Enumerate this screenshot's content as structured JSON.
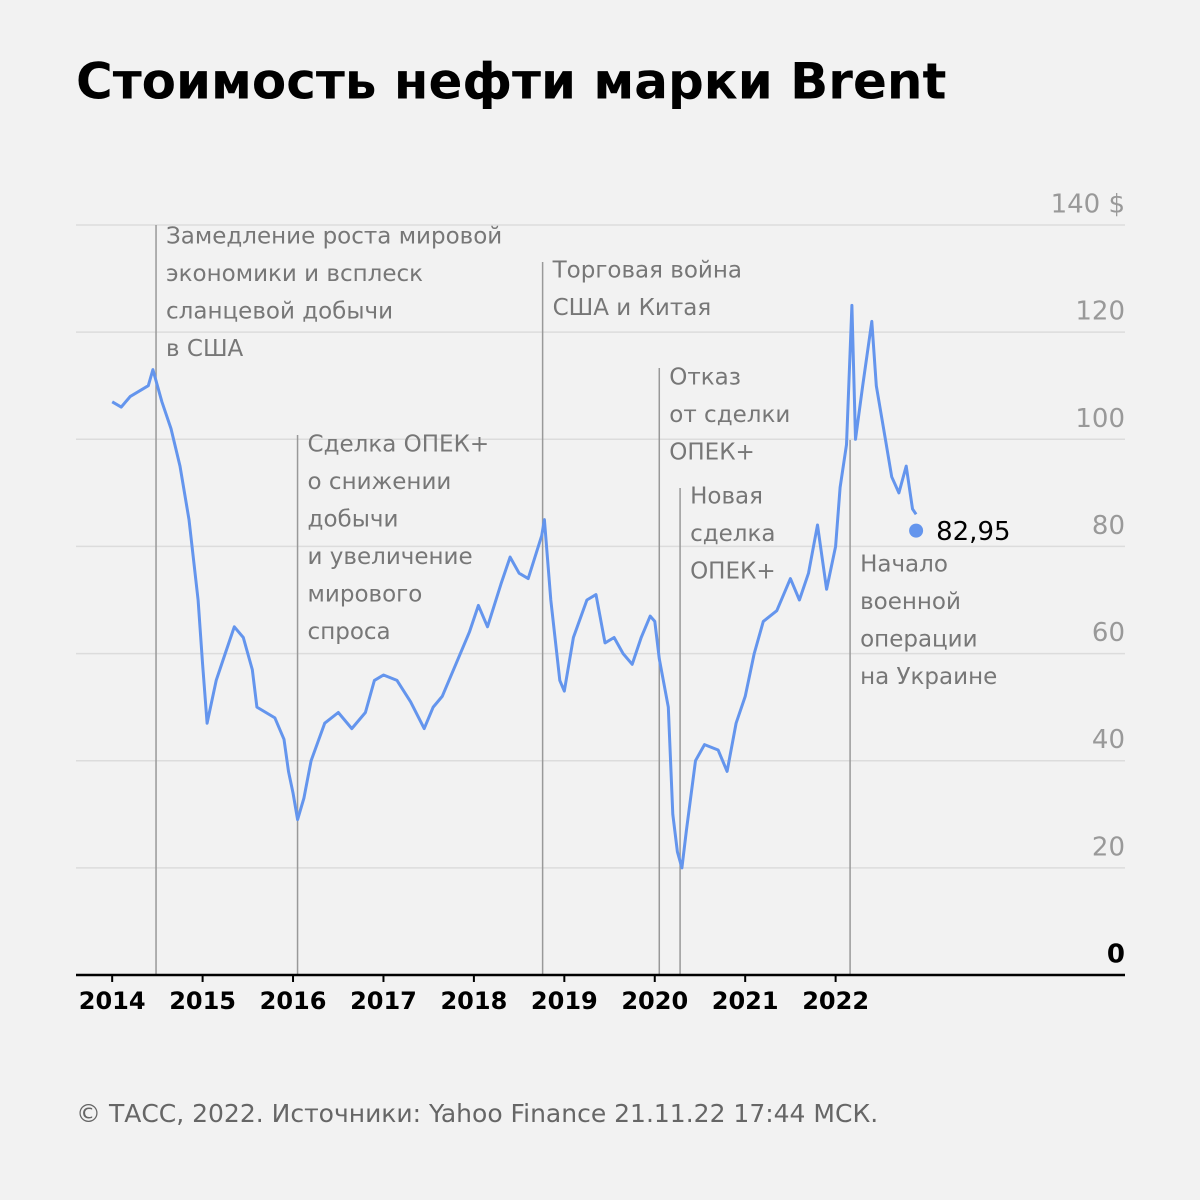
{
  "chart_data": {
    "type": "line",
    "title": "Стоимость нефти марки Brent",
    "footer": "© ТАСС, 2022. Источники: Yahoo Finance 21.11.22 17:44 МСК.",
    "color": "#6495ed",
    "x": [
      2014.0,
      2014.1,
      2014.2,
      2014.3,
      2014.4,
      2014.45,
      2014.55,
      2014.65,
      2014.75,
      2014.85,
      2014.95,
      2015.0,
      2015.05,
      2015.15,
      2015.25,
      2015.35,
      2015.45,
      2015.55,
      2015.6,
      2015.7,
      2015.8,
      2015.9,
      2015.95,
      2016.0,
      2016.05,
      2016.12,
      2016.2,
      2016.35,
      2016.5,
      2016.65,
      2016.8,
      2016.9,
      2017.0,
      2017.15,
      2017.3,
      2017.45,
      2017.55,
      2017.65,
      2017.8,
      2017.95,
      2018.05,
      2018.15,
      2018.3,
      2018.4,
      2018.5,
      2018.6,
      2018.75,
      2018.78,
      2018.85,
      2018.95,
      2019.0,
      2019.1,
      2019.25,
      2019.35,
      2019.45,
      2019.55,
      2019.65,
      2019.75,
      2019.85,
      2019.95,
      2020.0,
      2020.05,
      2020.15,
      2020.2,
      2020.25,
      2020.3,
      2020.35,
      2020.45,
      2020.55,
      2020.7,
      2020.8,
      2020.9,
      2021.0,
      2021.1,
      2021.2,
      2021.35,
      2021.5,
      2021.6,
      2021.7,
      2021.8,
      2021.9,
      2022.0,
      2022.05,
      2022.12,
      2022.18,
      2022.22,
      2022.3,
      2022.4,
      2022.45,
      2022.55,
      2022.62,
      2022.7,
      2022.78,
      2022.85,
      2022.89
    ],
    "values": [
      107,
      106,
      108,
      109,
      110,
      113,
      107,
      102,
      95,
      85,
      70,
      58,
      47,
      55,
      60,
      65,
      63,
      57,
      50,
      49,
      48,
      44,
      38,
      34,
      29,
      33,
      40,
      47,
      49,
      46,
      49,
      55,
      56,
      55,
      51,
      46,
      50,
      52,
      58,
      64,
      69,
      65,
      73,
      78,
      75,
      74,
      82,
      85,
      70,
      55,
      53,
      63,
      70,
      71,
      62,
      63,
      60,
      58,
      63,
      67,
      66,
      59,
      50,
      30,
      23,
      20,
      27,
      40,
      43,
      42,
      38,
      47,
      52,
      60,
      66,
      68,
      74,
      70,
      75,
      84,
      72,
      80,
      91,
      99,
      125,
      100,
      110,
      122,
      110,
      100,
      93,
      90,
      95,
      87,
      86
    ],
    "end_marker": {
      "x": 2022.89,
      "value": 82.95,
      "label": "82,95"
    },
    "xlim": [
      2013.6,
      2025.2
    ],
    "xticks": [
      2014,
      2015,
      2016,
      2017,
      2018,
      2019,
      2020,
      2021,
      2022
    ],
    "ylim": [
      0,
      140
    ],
    "yticks": [
      0,
      20,
      40,
      60,
      80,
      100,
      120,
      {
        "value": 140,
        "label": "140 $"
      }
    ],
    "grid": true,
    "annotations": [
      {
        "x": 2014.485,
        "lines": [
          "Замедление роста мировой",
          "экономики и всплеск",
          "сланцевой добычи",
          "в США"
        ]
      },
      {
        "x": 2016.05,
        "lines": [
          "Сделка ОПЕК+",
          "о снижении",
          "добычи",
          "и увеличение",
          "мирового",
          "спроса"
        ]
      },
      {
        "x": 2018.76,
        "lines": [
          "Торговая война",
          "США и Китая"
        ]
      },
      {
        "x": 2020.05,
        "lines": [
          "Отказ",
          "от сделки",
          "ОПЕК+"
        ]
      },
      {
        "x": 2020.28,
        "lines": [
          "Новая",
          "сделка",
          "ОПЕК+"
        ]
      },
      {
        "x": 2022.16,
        "lines": [
          "Начало",
          "военной",
          "операции",
          "на Украине"
        ]
      }
    ]
  }
}
